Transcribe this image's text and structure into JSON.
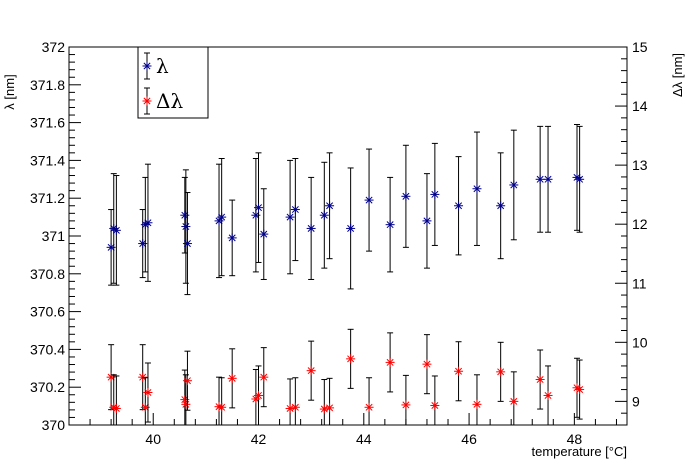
{
  "chart_data": {
    "type": "scatter",
    "title": "",
    "xlabel": "temperature [°C]",
    "ylabel_left": "λ [nm]",
    "ylabel_right": "Δλ [nm]",
    "xlim": [
      38.4,
      49.0
    ],
    "ylim_left": [
      370,
      372
    ],
    "ylim_right": [
      8.6,
      15
    ],
    "x_ticks": [
      40,
      42,
      44,
      46,
      48
    ],
    "y_left_ticks": [
      370,
      370.2,
      370.4,
      370.6,
      370.8,
      371,
      371.2,
      371.4,
      371.6,
      371.8,
      372
    ],
    "y_right_ticks": [
      9,
      10,
      11,
      12,
      13,
      14,
      15
    ],
    "grid": false,
    "legend": {
      "placement": "top-left"
    },
    "series": [
      {
        "name": "λ",
        "axis": "left",
        "color": "#00008b",
        "marker": "asterisk",
        "points": [
          {
            "x": 39.2,
            "y": 370.94,
            "err": 0.2
          },
          {
            "x": 39.25,
            "y": 371.04,
            "err": 0.29
          },
          {
            "x": 39.3,
            "y": 371.03,
            "err": 0.29
          },
          {
            "x": 39.8,
            "y": 370.96,
            "err": 0.18
          },
          {
            "x": 39.85,
            "y": 371.06,
            "err": 0.25
          },
          {
            "x": 39.9,
            "y": 371.07,
            "err": 0.31
          },
          {
            "x": 40.6,
            "y": 371.11,
            "err": 0.2
          },
          {
            "x": 40.62,
            "y": 371.05,
            "err": 0.3
          },
          {
            "x": 40.65,
            "y": 370.96,
            "err": 0.27
          },
          {
            "x": 41.25,
            "y": 371.08,
            "err": 0.3
          },
          {
            "x": 41.3,
            "y": 371.1,
            "err": 0.31
          },
          {
            "x": 41.5,
            "y": 370.99,
            "err": 0.2
          },
          {
            "x": 41.95,
            "y": 371.11,
            "err": 0.3
          },
          {
            "x": 42.0,
            "y": 371.15,
            "err": 0.29
          },
          {
            "x": 42.1,
            "y": 371.01,
            "err": 0.24
          },
          {
            "x": 42.6,
            "y": 371.1,
            "err": 0.3
          },
          {
            "x": 42.7,
            "y": 371.14,
            "err": 0.27
          },
          {
            "x": 43.0,
            "y": 371.04,
            "err": 0.27
          },
          {
            "x": 43.25,
            "y": 371.11,
            "err": 0.28
          },
          {
            "x": 43.35,
            "y": 371.16,
            "err": 0.28
          },
          {
            "x": 43.75,
            "y": 371.04,
            "err": 0.32
          },
          {
            "x": 44.1,
            "y": 371.19,
            "err": 0.27
          },
          {
            "x": 44.5,
            "y": 371.06,
            "err": 0.25
          },
          {
            "x": 44.8,
            "y": 371.21,
            "err": 0.27
          },
          {
            "x": 45.2,
            "y": 371.08,
            "err": 0.25
          },
          {
            "x": 45.35,
            "y": 371.22,
            "err": 0.27
          },
          {
            "x": 45.8,
            "y": 371.16,
            "err": 0.26
          },
          {
            "x": 46.15,
            "y": 371.25,
            "err": 0.3
          },
          {
            "x": 46.6,
            "y": 371.16,
            "err": 0.28
          },
          {
            "x": 46.85,
            "y": 371.27,
            "err": 0.29
          },
          {
            "x": 47.35,
            "y": 371.3,
            "err": 0.28
          },
          {
            "x": 47.5,
            "y": 371.3,
            "err": 0.28
          },
          {
            "x": 48.05,
            "y": 371.31,
            "err": 0.28
          },
          {
            "x": 48.1,
            "y": 371.3,
            "err": 0.28
          }
        ]
      },
      {
        "name": "Δλ",
        "axis": "right",
        "color": "#ff0000",
        "marker": "asterisk",
        "points": [
          {
            "x": 39.2,
            "y": 9.41,
            "err": 0.55
          },
          {
            "x": 39.25,
            "y": 8.9,
            "err": 0.55
          },
          {
            "x": 39.3,
            "y": 8.88,
            "err": 0.55
          },
          {
            "x": 39.8,
            "y": 9.41,
            "err": 0.55
          },
          {
            "x": 39.85,
            "y": 8.9,
            "err": 0.5
          },
          {
            "x": 39.9,
            "y": 9.15,
            "err": 0.5
          },
          {
            "x": 40.6,
            "y": 9.03,
            "err": 0.5
          },
          {
            "x": 40.62,
            "y": 8.95,
            "err": 0.5
          },
          {
            "x": 40.65,
            "y": 9.35,
            "err": 0.5
          },
          {
            "x": 41.25,
            "y": 8.91,
            "err": 0.5
          },
          {
            "x": 41.3,
            "y": 8.9,
            "err": 0.5
          },
          {
            "x": 41.5,
            "y": 9.39,
            "err": 0.5
          },
          {
            "x": 41.95,
            "y": 9.04,
            "err": 0.5
          },
          {
            "x": 42.0,
            "y": 9.1,
            "err": 0.5
          },
          {
            "x": 42.1,
            "y": 9.41,
            "err": 0.5
          },
          {
            "x": 42.6,
            "y": 8.88,
            "err": 0.5
          },
          {
            "x": 42.7,
            "y": 8.9,
            "err": 0.5
          },
          {
            "x": 43.0,
            "y": 9.52,
            "err": 0.5
          },
          {
            "x": 43.25,
            "y": 8.87,
            "err": 0.5
          },
          {
            "x": 43.35,
            "y": 8.89,
            "err": 0.5
          },
          {
            "x": 43.75,
            "y": 9.72,
            "err": 0.5
          },
          {
            "x": 44.1,
            "y": 8.9,
            "err": 0.5
          },
          {
            "x": 44.5,
            "y": 9.66,
            "err": 0.5
          },
          {
            "x": 44.8,
            "y": 8.94,
            "err": 0.5
          },
          {
            "x": 45.2,
            "y": 9.63,
            "err": 0.5
          },
          {
            "x": 45.35,
            "y": 8.93,
            "err": 0.5
          },
          {
            "x": 45.8,
            "y": 9.51,
            "err": 0.5
          },
          {
            "x": 46.15,
            "y": 8.95,
            "err": 0.5
          },
          {
            "x": 46.6,
            "y": 9.5,
            "err": 0.5
          },
          {
            "x": 46.85,
            "y": 9.0,
            "err": 0.5
          },
          {
            "x": 47.35,
            "y": 9.37,
            "err": 0.5
          },
          {
            "x": 47.5,
            "y": 9.1,
            "err": 0.5
          },
          {
            "x": 48.05,
            "y": 9.23,
            "err": 0.5
          },
          {
            "x": 48.1,
            "y": 9.2,
            "err": 0.5
          }
        ]
      }
    ]
  }
}
